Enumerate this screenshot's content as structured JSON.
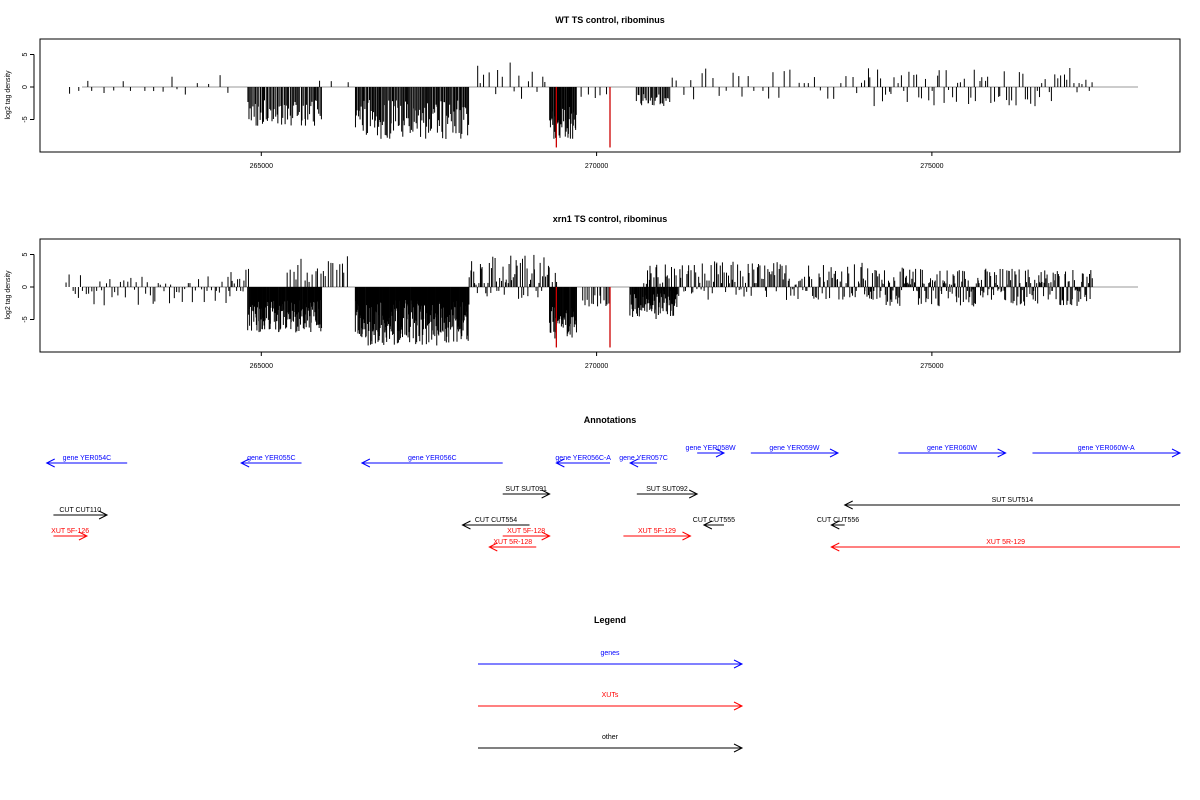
{
  "chart_data": [
    {
      "type": "bar",
      "title": "WT TS control, ribominus",
      "ylabel": "log2 tag density",
      "xlim": [
        261700,
        278700
      ],
      "ylim": [
        -9.5,
        7
      ],
      "x_ticks": [
        "265000",
        "270000",
        "275000"
      ],
      "y_ticks": [
        "5",
        "0",
        "-5"
      ],
      "baseline": 0,
      "highlight_color": "#cc0000",
      "bar_color": "#000000",
      "regions": [
        {
          "from": 262100,
          "to": 264500,
          "sign": 1,
          "min": -2,
          "max": 2,
          "step": 140
        },
        {
          "from": 264800,
          "to": 265900,
          "sign": -1,
          "min": -6,
          "max": -2,
          "step": 18
        },
        {
          "from": 265900,
          "to": 266400,
          "sign": 1,
          "min": -1,
          "max": 1,
          "step": 200
        },
        {
          "from": 266400,
          "to": 268100,
          "sign": -1,
          "min": -8,
          "max": -2,
          "step": 15
        },
        {
          "from": 268200,
          "to": 269300,
          "sign": 1,
          "min": -2,
          "max": 4,
          "step": 70
        },
        {
          "from": 269300,
          "to": 269700,
          "sign": -1,
          "min": -8,
          "max": -3,
          "step": 10
        },
        {
          "from": 269800,
          "to": 270200,
          "sign": -1,
          "min": -2,
          "max": -1,
          "step": 80
        },
        {
          "from": 270600,
          "to": 271100,
          "sign": -1,
          "min": -3,
          "max": -1,
          "step": 18
        },
        {
          "from": 271100,
          "to": 274000,
          "sign": 1,
          "min": -2,
          "max": 3,
          "step": 90
        },
        {
          "from": 274000,
          "to": 277400,
          "sign": 1,
          "min": -3,
          "max": 3,
          "step": 45
        }
      ],
      "highlights": [
        {
          "x": 269400,
          "y": -9.3
        },
        {
          "x": 270200,
          "y": -9.3
        }
      ]
    },
    {
      "type": "bar",
      "title": "xrn1 TS control, ribominus",
      "ylabel": "log2 tag density",
      "xlim": [
        261700,
        278700
      ],
      "ylim": [
        -9.5,
        7
      ],
      "x_ticks": [
        "265000",
        "270000",
        "275000"
      ],
      "y_ticks": [
        "5",
        "0",
        "-5"
      ],
      "baseline": 0,
      "highlight_color": "#cc0000",
      "bar_color": "#000000",
      "regions": [
        {
          "from": 262100,
          "to": 264500,
          "sign": 1,
          "min": -3,
          "max": 2,
          "step": 40
        },
        {
          "from": 264500,
          "to": 264800,
          "sign": 1,
          "min": -2,
          "max": 3,
          "step": 25
        },
        {
          "from": 264800,
          "to": 265900,
          "sign": -1,
          "min": -7,
          "max": -2,
          "step": 8
        },
        {
          "from": 265400,
          "to": 266300,
          "sign": 1,
          "min": 0,
          "max": 5,
          "step": 40
        },
        {
          "from": 266400,
          "to": 268100,
          "sign": -1,
          "min": -9,
          "max": -2,
          "step": 7
        },
        {
          "from": 268100,
          "to": 269400,
          "sign": 1,
          "min": -2,
          "max": 5,
          "step": 20
        },
        {
          "from": 269300,
          "to": 269700,
          "sign": -1,
          "min": -8,
          "max": -3,
          "step": 8
        },
        {
          "from": 269800,
          "to": 270200,
          "sign": -1,
          "min": -3,
          "max": -1,
          "step": 30
        },
        {
          "from": 270500,
          "to": 271200,
          "sign": -1,
          "min": -5,
          "max": -1,
          "step": 10
        },
        {
          "from": 270700,
          "to": 274000,
          "sign": 1,
          "min": -2,
          "max": 4,
          "step": 20
        },
        {
          "from": 274000,
          "to": 277400,
          "sign": 1,
          "min": -3,
          "max": 3,
          "step": 14
        }
      ],
      "highlights": [
        {
          "x": 269400,
          "y": -9.3
        },
        {
          "x": 270200,
          "y": -9.3
        }
      ]
    }
  ],
  "annotations": {
    "title": "Annotations",
    "features": [
      {
        "label": "gene YER054C",
        "color": "#0000ff",
        "start": 263000,
        "end": 261800,
        "row": 0
      },
      {
        "label": "gene YER055C",
        "color": "#0000ff",
        "start": 265600,
        "end": 264700,
        "row": 0
      },
      {
        "label": "gene YER056C",
        "color": "#0000ff",
        "start": 268600,
        "end": 266500,
        "row": 0
      },
      {
        "label": "gene YER056C-A",
        "color": "#0000ff",
        "start": 270200,
        "end": 269400,
        "row": 0
      },
      {
        "label": "gene YER057C",
        "color": "#0000ff",
        "start": 270900,
        "end": 270500,
        "row": 0
      },
      {
        "label": "gene YER058W",
        "color": "#0000ff",
        "start": 271500,
        "end": 271900,
        "row": -1
      },
      {
        "label": "gene YER059W",
        "color": "#0000ff",
        "start": 272300,
        "end": 273600,
        "row": -1
      },
      {
        "label": "gene YER060W",
        "color": "#0000ff",
        "start": 274500,
        "end": 276100,
        "row": -1
      },
      {
        "label": "gene YER060W-A",
        "color": "#0000ff",
        "start": 276500,
        "end": 278700,
        "row": -1
      },
      {
        "label": "SUT SUT091",
        "color": "#000000",
        "start": 268600,
        "end": 269300,
        "row": 1
      },
      {
        "label": "SUT SUT092",
        "color": "#000000",
        "start": 270600,
        "end": 271500,
        "row": 1
      },
      {
        "label": "SUT SUT514",
        "color": "#000000",
        "start": 278700,
        "end": 273700,
        "row": 2
      },
      {
        "label": "CUT CUT110",
        "color": "#000000",
        "start": 261900,
        "end": 262700,
        "row": 3
      },
      {
        "label": "CUT CUT554",
        "color": "#000000",
        "start": 269000,
        "end": 268000,
        "row": 4
      },
      {
        "label": "CUT CUT555",
        "color": "#000000",
        "start": 271900,
        "end": 271600,
        "row": 4
      },
      {
        "label": "CUT CUT556",
        "color": "#000000",
        "start": 273700,
        "end": 273500,
        "row": 4
      },
      {
        "label": "XUT 5F-126",
        "color": "#ff0000",
        "start": 261900,
        "end": 262400,
        "row": 5
      },
      {
        "label": "XUT 5F-128",
        "color": "#ff0000",
        "start": 268600,
        "end": 269300,
        "row": 5
      },
      {
        "label": "XUT 5F-129",
        "color": "#ff0000",
        "start": 270400,
        "end": 271400,
        "row": 5
      },
      {
        "label": "XUT 5R-128",
        "color": "#ff0000",
        "start": 269100,
        "end": 268400,
        "row": 6
      },
      {
        "label": "XUT 5R-129",
        "color": "#ff0000",
        "start": 278700,
        "end": 273500,
        "row": 6
      }
    ]
  },
  "legend": {
    "title": "Legend",
    "items": [
      {
        "label": "genes",
        "color": "#0000ff"
      },
      {
        "label": "XUTs",
        "color": "#ff0000"
      },
      {
        "label": "other",
        "color": "#000000"
      }
    ]
  }
}
